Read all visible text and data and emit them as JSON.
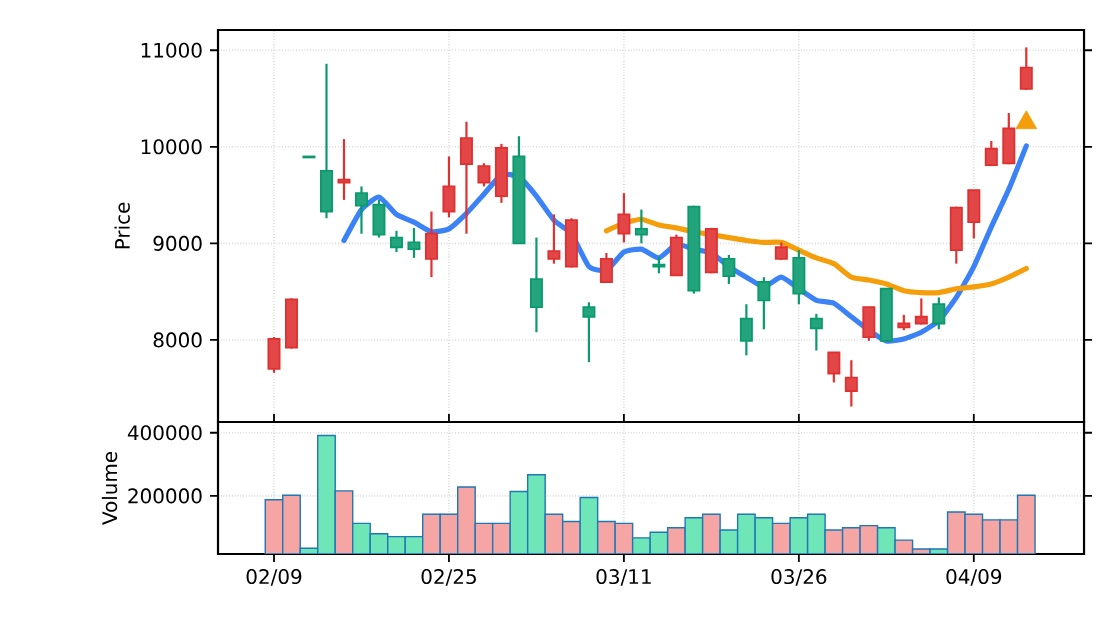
{
  "chart_data": [
    {
      "type": "candlestick",
      "ylabel": "Price",
      "categories": [
        null,
        null,
        null,
        null,
        null,
        null,
        null,
        null,
        null,
        null,
        null,
        null,
        null,
        null,
        null,
        null,
        null,
        null,
        null,
        null,
        null,
        null,
        null,
        null,
        null,
        null,
        null,
        null,
        null,
        null,
        null,
        null,
        null,
        null,
        null,
        null,
        null,
        null,
        null,
        null,
        null,
        null,
        null,
        null
      ],
      "ylim": [
        7150,
        11210
      ],
      "yticks": [
        8000,
        9000,
        10000,
        11000
      ],
      "grid": true,
      "tick_labels": "y",
      "series": [
        {
          "type": "line",
          "color": "#3b82f6",
          "values": [
            null,
            null,
            null,
            null,
            9030,
            9350,
            9480,
            9300,
            9220,
            9120,
            9150,
            9310,
            9510,
            9710,
            9690,
            9490,
            9240,
            9100,
            8760,
            8720,
            8910,
            8940,
            8850,
            8990,
            8940,
            8900,
            8760,
            8650,
            8550,
            8650,
            8530,
            8410,
            8380,
            8240,
            8100,
            7990,
            8010,
            8080,
            8200,
            8440,
            8760,
            9170,
            9560,
            10010
          ]
        },
        {
          "type": "line",
          "color": "#f59e0b",
          "values": [
            null,
            null,
            null,
            null,
            null,
            null,
            null,
            null,
            null,
            null,
            null,
            null,
            null,
            null,
            null,
            null,
            null,
            null,
            null,
            9130,
            9210,
            9250,
            9190,
            9160,
            9120,
            9090,
            9060,
            9030,
            9010,
            9010,
            8930,
            8850,
            8790,
            8650,
            8620,
            8580,
            8510,
            8490,
            8490,
            8530,
            8550,
            8580,
            8650,
            8740
          ]
        },
        {
          "type": "scatter",
          "marker": "triangle",
          "color": "#f59e0b",
          "values": [
            null,
            null,
            null,
            null,
            null,
            null,
            null,
            null,
            null,
            null,
            null,
            null,
            null,
            null,
            null,
            null,
            null,
            null,
            null,
            null,
            null,
            null,
            null,
            null,
            null,
            null,
            null,
            null,
            null,
            null,
            null,
            null,
            null,
            null,
            null,
            null,
            null,
            null,
            null,
            null,
            null,
            null,
            null,
            10250
          ]
        },
        {
          "type": "candlestick",
          "ohlc": [
            [
              7700,
              8030,
              7660,
              8010
            ],
            [
              7920,
              8430,
              7910,
              8420
            ],
            [
              9900,
              9900,
              9890,
              9890
            ],
            [
              9750,
              10860,
              9260,
              9330
            ],
            [
              9630,
              10080,
              9450,
              9660
            ],
            [
              9520,
              9590,
              9100,
              9390
            ],
            [
              9400,
              9450,
              9060,
              9090
            ],
            [
              9060,
              9130,
              8910,
              8960
            ],
            [
              9010,
              9160,
              8850,
              8940
            ],
            [
              8840,
              9330,
              8650,
              9100
            ],
            [
              9330,
              9900,
              9270,
              9590
            ],
            [
              9820,
              10260,
              9100,
              10090
            ],
            [
              9630,
              9830,
              9590,
              9800
            ],
            [
              9490,
              10030,
              9420,
              9990
            ],
            [
              9900,
              10110,
              9000,
              9000
            ],
            [
              8630,
              9060,
              8080,
              8340
            ],
            [
              8840,
              9300,
              8790,
              8920
            ],
            [
              8760,
              9260,
              8750,
              9240
            ],
            [
              8340,
              8390,
              7770,
              8240
            ],
            [
              8600,
              8900,
              8590,
              8840
            ],
            [
              9100,
              9520,
              9010,
              9300
            ],
            [
              9150,
              9350,
              9000,
              9090
            ],
            [
              8780,
              8860,
              8690,
              8760
            ],
            [
              8670,
              9090,
              8670,
              9060
            ],
            [
              9380,
              9390,
              8480,
              8510
            ],
            [
              8700,
              9160,
              8690,
              9150
            ],
            [
              8840,
              8880,
              8580,
              8660
            ],
            [
              8220,
              8370,
              7840,
              7990
            ],
            [
              8600,
              8650,
              8110,
              8410
            ],
            [
              8840,
              9010,
              8830,
              8960
            ],
            [
              8850,
              8930,
              8370,
              8480
            ],
            [
              8220,
              8270,
              7890,
              8120
            ],
            [
              7650,
              7870,
              7560,
              7870
            ],
            [
              7470,
              7790,
              7310,
              7610
            ],
            [
              8030,
              8340,
              7990,
              8340
            ],
            [
              8530,
              8530,
              7990,
              7990
            ],
            [
              8130,
              8260,
              8100,
              8170
            ],
            [
              8170,
              8430,
              8160,
              8240
            ],
            [
              8370,
              8440,
              8110,
              8170
            ],
            [
              8930,
              9380,
              8790,
              9370
            ],
            [
              9220,
              9550,
              9050,
              9550
            ],
            [
              9810,
              10060,
              9800,
              9980
            ],
            [
              9830,
              10350,
              9820,
              10190
            ],
            [
              10600,
              11030,
              10590,
              10820
            ]
          ],
          "colors": [
            "#e03131",
            "#e03131",
            "#0a9a6e",
            "#0a9a6e",
            "#e03131",
            "#0a9a6e",
            "#0a9a6e",
            "#0a9a6e",
            "#0a9a6e",
            "#e03131",
            "#e03131",
            "#e03131",
            "#e03131",
            "#e03131",
            "#0a9a6e",
            "#0a9a6e",
            "#e03131",
            "#e03131",
            "#0a9a6e",
            "#e03131",
            "#e03131",
            "#0a9a6e",
            "#0a9a6e",
            "#e03131",
            "#0a9a6e",
            "#e03131",
            "#0a9a6e",
            "#0a9a6e",
            "#0a9a6e",
            "#e03131",
            "#0a9a6e",
            "#0a9a6e",
            "#e03131",
            "#e03131",
            "#e03131",
            "#0a9a6e",
            "#e03131",
            "#e03131",
            "#0a9a6e",
            "#e03131",
            "#e03131",
            "#e03131",
            "#e03131",
            "#e03131"
          ]
        }
      ]
    },
    {
      "type": "bar",
      "ylabel": "Volume",
      "categories": [
        "02/09",
        null,
        null,
        null,
        null,
        null,
        null,
        null,
        null,
        null,
        "02/25",
        null,
        null,
        null,
        null,
        null,
        null,
        null,
        null,
        null,
        "03/11",
        null,
        null,
        null,
        null,
        null,
        null,
        null,
        null,
        null,
        "03/26",
        null,
        null,
        null,
        null,
        null,
        null,
        null,
        null,
        null,
        "04/09",
        null,
        null,
        null
      ],
      "ylim": [
        16000,
        434000
      ],
      "yticks": [
        200000,
        400000
      ],
      "grid": true,
      "values": [
        188000,
        202000,
        34000,
        391000,
        216000,
        113000,
        80000,
        71000,
        71000,
        142000,
        142000,
        228000,
        113000,
        113000,
        214000,
        267000,
        142000,
        119000,
        195000,
        119000,
        113000,
        67000,
        85000,
        99000,
        131000,
        142000,
        92000,
        142000,
        131000,
        113000,
        131000,
        142000,
        92000,
        99000,
        106000,
        99000,
        60000,
        32000,
        32000,
        149000,
        142000,
        124000,
        124000,
        202000
      ],
      "colors": [
        "#f6a5a5",
        "#f6a5a5",
        "#6ee6b8",
        "#6ee6b8",
        "#f6a5a5",
        "#6ee6b8",
        "#6ee6b8",
        "#6ee6b8",
        "#6ee6b8",
        "#f6a5a5",
        "#f6a5a5",
        "#f6a5a5",
        "#f6a5a5",
        "#f6a5a5",
        "#6ee6b8",
        "#6ee6b8",
        "#f6a5a5",
        "#f6a5a5",
        "#6ee6b8",
        "#f6a5a5",
        "#f6a5a5",
        "#6ee6b8",
        "#6ee6b8",
        "#f6a5a5",
        "#6ee6b8",
        "#f6a5a5",
        "#6ee6b8",
        "#6ee6b8",
        "#6ee6b8",
        "#f6a5a5",
        "#6ee6b8",
        "#6ee6b8",
        "#f6a5a5",
        "#f6a5a5",
        "#f6a5a5",
        "#6ee6b8",
        "#f6a5a5",
        "#f6a5a5",
        "#6ee6b8",
        "#f6a5a5",
        "#f6a5a5",
        "#f6a5a5",
        "#f6a5a5",
        "#f6a5a5"
      ]
    }
  ]
}
